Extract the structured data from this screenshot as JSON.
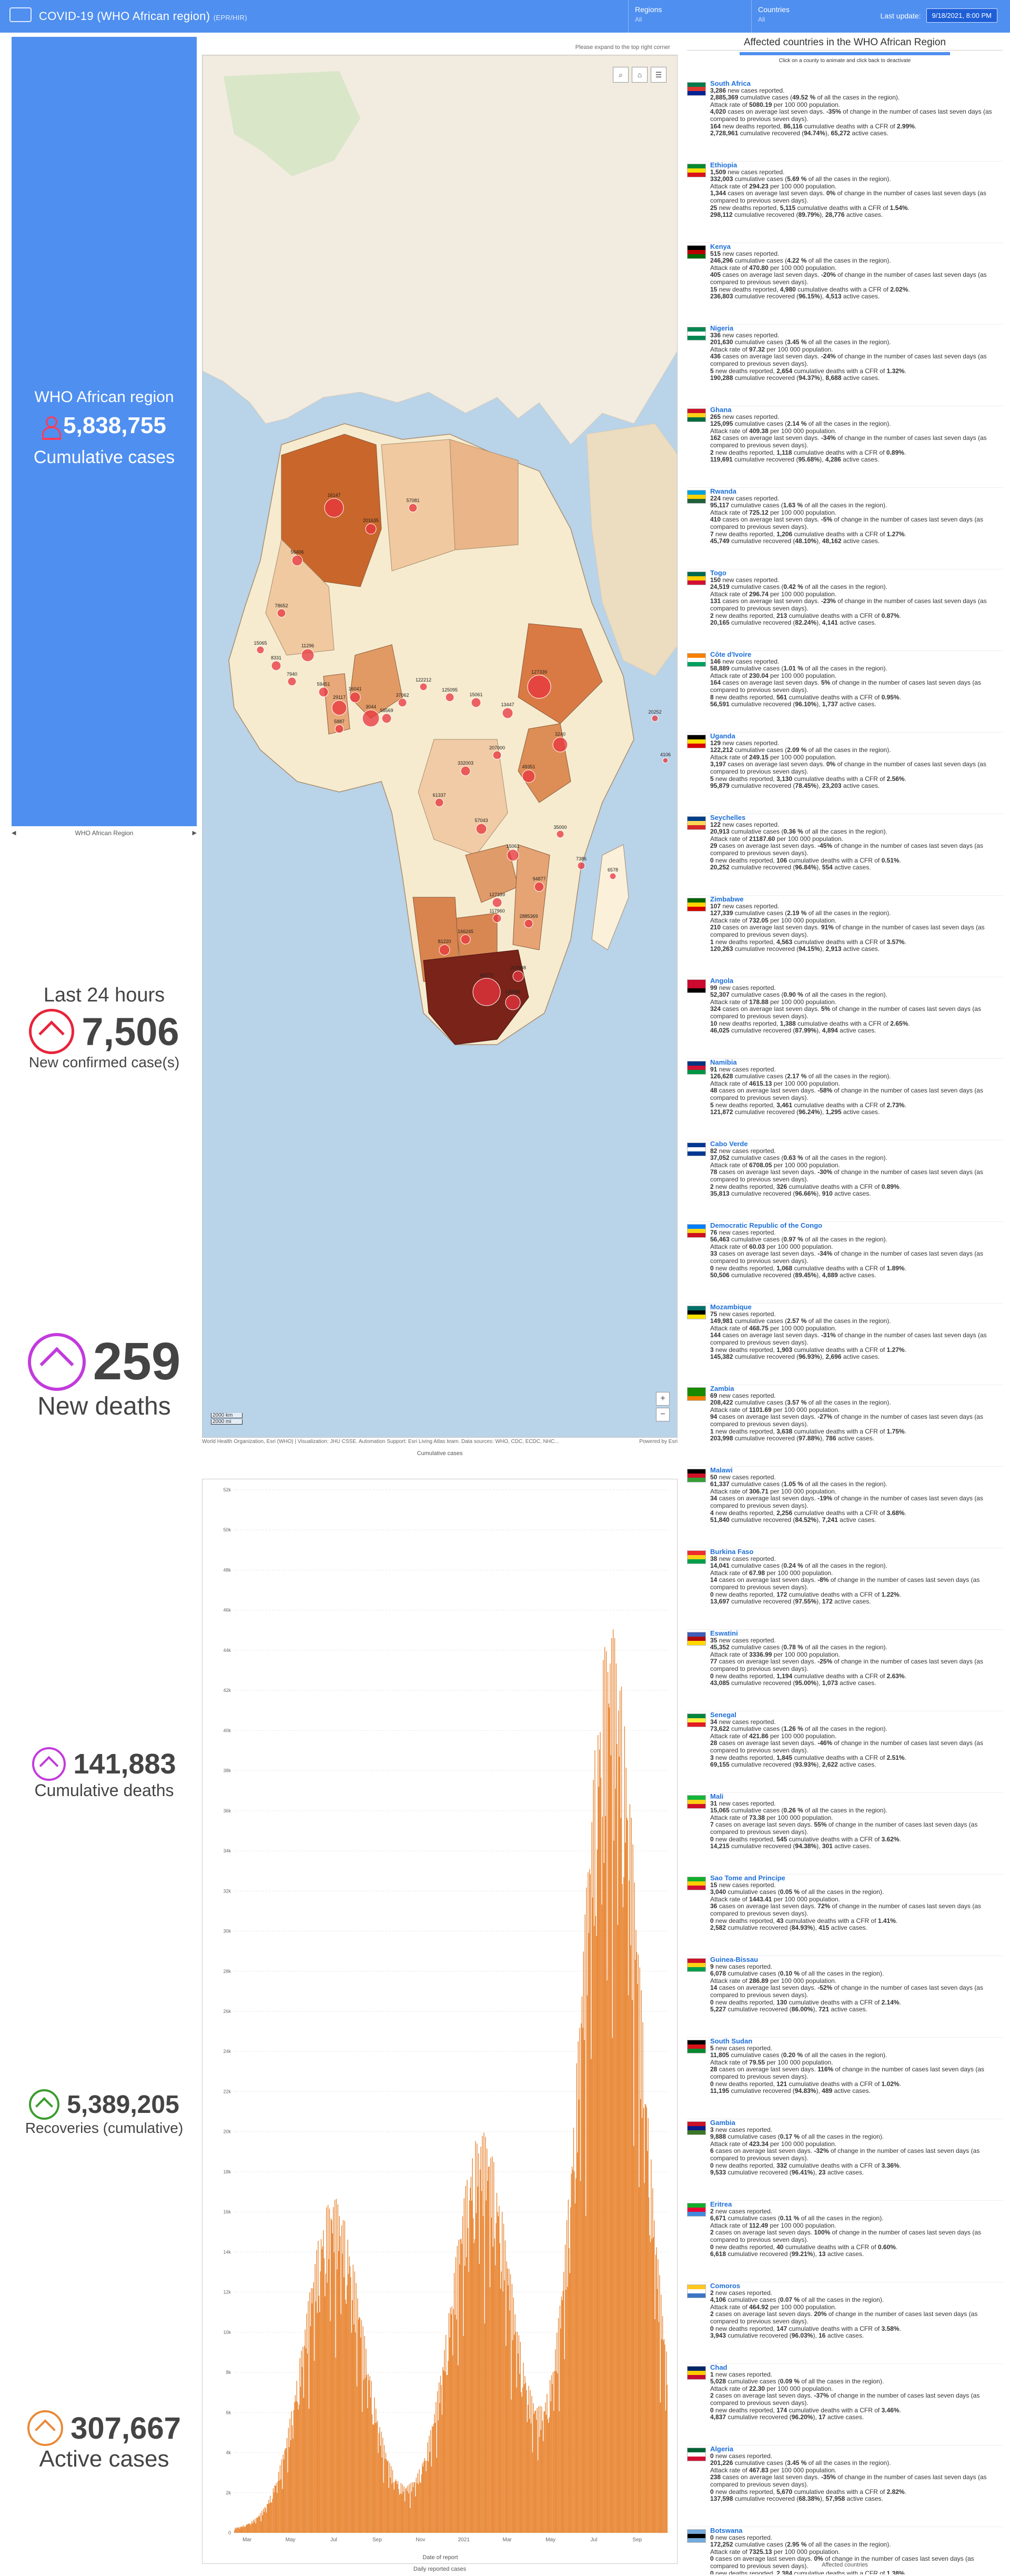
{
  "header": {
    "title": "COVID-19 (WHO African region)",
    "subtitle": "(EPR/HIR)",
    "regions_label": "Regions",
    "regions_value": "All",
    "countries_label": "Countries",
    "countries_value": "All",
    "last_update_label": "Last update:",
    "last_update_value": "9/18/2021, 8:00 PM",
    "colors": {
      "bar": "#4f8ff0",
      "badge": "#1f5fd6"
    }
  },
  "left": {
    "region_name": "WHO African region",
    "cumulative_cases": "5,838,755",
    "cumulative_cases_label": "Cumulative cases",
    "region_nav": "WHO African Region",
    "last24_title": "Last 24 hours",
    "new_cases": "7,506",
    "new_cases_label": "New confirmed case(s)",
    "new_deaths": "259",
    "new_deaths_label": "New deaths",
    "cum_deaths": "141,883",
    "cum_deaths_label": "Cumulative deaths",
    "recoveries": "5,389,205",
    "recoveries_label": "Recoveries (cumulative)",
    "active": "307,667",
    "active_label": "Active cases",
    "colors": {
      "cases": "#e8233a",
      "deaths": "#c23bdc",
      "recoveries": "#3a9c2e",
      "active": "#e98a3a"
    }
  },
  "map": {
    "hint": "Please expand to the top right corner",
    "scale_1": "2000 km",
    "scale_2": "2000 mi",
    "attribution": "World Health Organization, Esri (WHO) | Visualization: JHU CSSE. Automation Support: Esri Living Atlas team. Data sources: WHO, CDC, ECDC, NHC...",
    "powered": "Powered by Esri",
    "caption": "Cumulative cases",
    "labels": [
      "16147",
      "201635",
      "57081",
      "56406",
      "78652",
      "15065",
      "8331",
      "7940",
      "11296",
      "59451",
      "29117",
      "16041",
      "3044",
      "58569",
      "37062",
      "122212",
      "125095",
      "15061",
      "13447",
      "127339",
      "3240",
      "49351",
      "207000",
      "332003",
      "61337",
      "57043",
      "15061",
      "94877",
      "117960",
      "166245",
      "81220",
      "46270",
      "149981",
      "203998",
      "127339",
      "2885369",
      "35000",
      "7386",
      "6578",
      "20252",
      "4106",
      "5887"
    ]
  },
  "chart": {
    "caption": "Daily reported cases",
    "xlabel": "Date of report"
  },
  "chart_data": {
    "type": "bar",
    "title": "",
    "xlabel": "Date of report",
    "ylabel": "",
    "ylim": [
      0,
      52000
    ],
    "yticks": [
      "0",
      "2k",
      "4k",
      "6k",
      "8k",
      "10k",
      "12k",
      "14k",
      "16k",
      "18k",
      "20k",
      "22k",
      "24k",
      "26k",
      "28k",
      "30k",
      "32k",
      "34k",
      "36k",
      "38k",
      "40k",
      "42k",
      "44k",
      "46k",
      "48k",
      "50k",
      "52k"
    ],
    "xticks": [
      "Mar",
      "May",
      "Jul",
      "Sep",
      "Nov",
      "2021",
      "Mar",
      "May",
      "Jul",
      "Sep"
    ],
    "color": "#e98a3a",
    "waves": [
      {
        "peak_index": 130,
        "peak_value": 16000
      },
      {
        "peak_index": 325,
        "peak_value": 18500
      },
      {
        "peak_index": 495,
        "peak_value": 43000
      }
    ],
    "days": 570
  },
  "right": {
    "title": "Affected countries in the WHO African Region",
    "subtitle": "Click on a county to animate and click back to deactivate",
    "footer": "Affected countries",
    "countries": [
      {
        "name": "South Africa",
        "new": "3,286",
        "cum": "2,885,369",
        "pct": "49.52 %",
        "rate": "5080.19",
        "avg": "4,020",
        "chg": "-35%",
        "dnew": "164",
        "dcum": "86,116",
        "cfr": "2.99%",
        "rec": "2,728,961",
        "rpct": "94.74%",
        "act": "65,272",
        "flag": [
          "#007a4d",
          "#de3831",
          "#002395"
        ]
      },
      {
        "name": "Ethiopia",
        "new": "1,509",
        "cum": "332,003",
        "pct": "5.69 %",
        "rate": "294.23",
        "avg": "1,344",
        "chg": "0%",
        "dnew": "25",
        "dcum": "5,115",
        "cfr": "1.54%",
        "rec": "298,112",
        "rpct": "89.79%",
        "act": "28,776",
        "flag": [
          "#078930",
          "#fcdd09",
          "#da121a"
        ]
      },
      {
        "name": "Kenya",
        "new": "515",
        "cum": "246,296",
        "pct": "4.22 %",
        "rate": "470.80",
        "avg": "405",
        "chg": "-20%",
        "dnew": "15",
        "dcum": "4,980",
        "cfr": "2.02%",
        "rec": "236,803",
        "rpct": "96.15%",
        "act": "4,513",
        "flag": [
          "#000000",
          "#bb0000",
          "#006600"
        ]
      },
      {
        "name": "Nigeria",
        "new": "336",
        "cum": "201,630",
        "pct": "3.45 %",
        "rate": "97.32",
        "avg": "436",
        "chg": "-24%",
        "dnew": "5",
        "dcum": "2,654",
        "cfr": "1.32%",
        "rec": "190,288",
        "rpct": "94.37%",
        "act": "8,688",
        "flag": [
          "#008751",
          "#ffffff",
          "#008751"
        ]
      },
      {
        "name": "Ghana",
        "new": "265",
        "cum": "125,095",
        "pct": "2.14 %",
        "rate": "409.38",
        "avg": "162",
        "chg": "-34%",
        "dnew": "2",
        "dcum": "1,118",
        "cfr": "0.89%",
        "rec": "119,691",
        "rpct": "95.68%",
        "act": "4,286",
        "flag": [
          "#ce1126",
          "#fcd116",
          "#006b3f"
        ]
      },
      {
        "name": "Rwanda",
        "new": "224",
        "cum": "95,117",
        "pct": "1.63 %",
        "rate": "725.12",
        "avg": "410",
        "chg": "-5%",
        "dnew": "7",
        "dcum": "1,206",
        "cfr": "1.27%",
        "rec": "45,749",
        "rpct": "48.10%",
        "act": "48,162",
        "flag": [
          "#00a1de",
          "#fad201",
          "#20603d"
        ]
      },
      {
        "name": "Togo",
        "new": "150",
        "cum": "24,519",
        "pct": "0.42 %",
        "rate": "296.74",
        "avg": "131",
        "chg": "-23%",
        "dnew": "2",
        "dcum": "213",
        "cfr": "0.87%",
        "rec": "20,165",
        "rpct": "82.24%",
        "act": "4,141",
        "flag": [
          "#006a4e",
          "#ffce00",
          "#d21034"
        ]
      },
      {
        "name": "Côte d'Ivoire",
        "new": "146",
        "cum": "58,889",
        "pct": "1.01 %",
        "rate": "230.04",
        "avg": "164",
        "chg": "5%",
        "dnew": "8",
        "dcum": "561",
        "cfr": "0.95%",
        "rec": "56,591",
        "rpct": "96.10%",
        "act": "1,737",
        "flag": [
          "#f77f00",
          "#ffffff",
          "#009e60"
        ]
      },
      {
        "name": "Uganda",
        "new": "129",
        "cum": "122,212",
        "pct": "2.09 %",
        "rate": "249.15",
        "avg": "3,197",
        "chg": "0%",
        "dnew": "5",
        "dcum": "3,130",
        "cfr": "2.56%",
        "rec": "95,879",
        "rpct": "78.45%",
        "act": "23,203",
        "flag": [
          "#000000",
          "#fcdc04",
          "#d90000"
        ]
      },
      {
        "name": "Seychelles",
        "new": "122",
        "cum": "20,913",
        "pct": "0.36 %",
        "rate": "21187.60",
        "avg": "29",
        "chg": "-45%",
        "dnew": "0",
        "dcum": "106",
        "cfr": "0.51%",
        "rec": "20,252",
        "rpct": "96.84%",
        "act": "554",
        "flag": [
          "#003f87",
          "#fcd856",
          "#d62828"
        ]
      },
      {
        "name": "Zimbabwe",
        "new": "107",
        "cum": "127,339",
        "pct": "2.19 %",
        "rate": "732.05",
        "avg": "210",
        "chg": "91%",
        "dnew": "1",
        "dcum": "4,563",
        "cfr": "3.57%",
        "rec": "120,263",
        "rpct": "94.15%",
        "act": "2,913",
        "flag": [
          "#006400",
          "#ffd200",
          "#d40000"
        ]
      },
      {
        "name": "Angola",
        "new": "99",
        "cum": "52,307",
        "pct": "0.90 %",
        "rate": "178.88",
        "avg": "324",
        "chg": "5%",
        "dnew": "10",
        "dcum": "1,388",
        "cfr": "2.65%",
        "rec": "46,025",
        "rpct": "87.99%",
        "act": "4,894",
        "flag": [
          "#cc092f",
          "#cc092f",
          "#000000"
        ]
      },
      {
        "name": "Namibia",
        "new": "91",
        "cum": "126,628",
        "pct": "2.17 %",
        "rate": "4615.13",
        "avg": "48",
        "chg": "-58%",
        "dnew": "5",
        "dcum": "3,461",
        "cfr": "2.73%",
        "rec": "121,872",
        "rpct": "96.24%",
        "act": "1,295",
        "flag": [
          "#003580",
          "#d21034",
          "#009543"
        ]
      },
      {
        "name": "Cabo Verde",
        "new": "82",
        "cum": "37,052",
        "pct": "0.63 %",
        "rate": "6708.05",
        "avg": "78",
        "chg": "-30%",
        "dnew": "2",
        "dcum": "326",
        "cfr": "0.89%",
        "rec": "35,813",
        "rpct": "96.66%",
        "act": "910",
        "flag": [
          "#003893",
          "#ffffff",
          "#003893"
        ]
      },
      {
        "name": "Democratic Republic of the Congo",
        "new": "76",
        "cum": "56,463",
        "pct": "0.97 %",
        "rate": "60.03",
        "avg": "33",
        "chg": "-34%",
        "dnew": "0",
        "dcum": "1,068",
        "cfr": "1.89%",
        "rec": "50,506",
        "rpct": "89.45%",
        "act": "4,889",
        "flag": [
          "#007fff",
          "#f7d618",
          "#ce1021"
        ]
      },
      {
        "name": "Mozambique",
        "new": "75",
        "cum": "149,981",
        "pct": "2.57 %",
        "rate": "468.75",
        "avg": "144",
        "chg": "-31%",
        "dnew": "3",
        "dcum": "1,903",
        "cfr": "1.27%",
        "rec": "145,382",
        "rpct": "96.93%",
        "act": "2,696",
        "flag": [
          "#007168",
          "#000000",
          "#fce100"
        ]
      },
      {
        "name": "Zambia",
        "new": "69",
        "cum": "208,422",
        "pct": "3.57 %",
        "rate": "1101.69",
        "avg": "94",
        "chg": "-27%",
        "dnew": "1",
        "dcum": "3,638",
        "cfr": "1.75%",
        "rec": "203,998",
        "rpct": "97.88%",
        "act": "786",
        "flag": [
          "#198a00",
          "#198a00",
          "#ef7d00"
        ]
      },
      {
        "name": "Malawi",
        "new": "50",
        "cum": "61,337",
        "pct": "1.05 %",
        "rate": "306.71",
        "avg": "34",
        "chg": "-19%",
        "dnew": "4",
        "dcum": "2,256",
        "cfr": "3.68%",
        "rec": "51,840",
        "rpct": "84.52%",
        "act": "7,241",
        "flag": [
          "#000000",
          "#ce1126",
          "#339e35"
        ]
      },
      {
        "name": "Burkina Faso",
        "new": "38",
        "cum": "14,041",
        "pct": "0.24 %",
        "rate": "67.98",
        "avg": "14",
        "chg": "-8%",
        "dnew": "0",
        "dcum": "172",
        "cfr": "1.22%",
        "rec": "13,697",
        "rpct": "97.55%",
        "act": "172",
        "flag": [
          "#ef2b2d",
          "#fcd116",
          "#009e49"
        ]
      },
      {
        "name": "Eswatini",
        "new": "35",
        "cum": "45,352",
        "pct": "0.78 %",
        "rate": "3336.99",
        "avg": "77",
        "chg": "-25%",
        "dnew": "0",
        "dcum": "1,194",
        "cfr": "2.63%",
        "rec": "43,085",
        "rpct": "95.00%",
        "act": "1,073",
        "flag": [
          "#3e5eb9",
          "#b10c0c",
          "#ffd900"
        ]
      },
      {
        "name": "Senegal",
        "new": "34",
        "cum": "73,622",
        "pct": "1.26 %",
        "rate": "421.86",
        "avg": "28",
        "chg": "-46%",
        "dnew": "3",
        "dcum": "1,845",
        "cfr": "2.51%",
        "rec": "69,155",
        "rpct": "93.93%",
        "act": "2,622",
        "flag": [
          "#00853f",
          "#fdef42",
          "#e31b23"
        ]
      },
      {
        "name": "Mali",
        "new": "31",
        "cum": "15,065",
        "pct": "0.26 %",
        "rate": "73.38",
        "avg": "7",
        "chg": "55%",
        "dnew": "0",
        "dcum": "545",
        "cfr": "3.62%",
        "rec": "14,215",
        "rpct": "94.38%",
        "act": "301",
        "flag": [
          "#14b53a",
          "#fcd116",
          "#ce1126"
        ]
      },
      {
        "name": "Sao Tome and Principe",
        "new": "15",
        "cum": "3,040",
        "pct": "0.05 %",
        "rate": "1443.41",
        "avg": "36",
        "chg": "72%",
        "dnew": "0",
        "dcum": "43",
        "cfr": "1.41%",
        "rec": "2,582",
        "rpct": "84.93%",
        "act": "415",
        "flag": [
          "#12ad2b",
          "#ffce00",
          "#d21034"
        ]
      },
      {
        "name": "Guinea-Bissau",
        "new": "9",
        "cum": "6,078",
        "pct": "0.10 %",
        "rate": "286.89",
        "avg": "14",
        "chg": "-52%",
        "dnew": "0",
        "dcum": "130",
        "cfr": "2.14%",
        "rec": "5,227",
        "rpct": "86.00%",
        "act": "721",
        "flag": [
          "#ce1126",
          "#fcd116",
          "#009e49"
        ]
      },
      {
        "name": "South Sudan",
        "new": "5",
        "cum": "11,805",
        "pct": "0.20 %",
        "rate": "79.55",
        "avg": "28",
        "chg": "116%",
        "dnew": "0",
        "dcum": "121",
        "cfr": "1.02%",
        "rec": "11,195",
        "rpct": "94.83%",
        "act": "489",
        "flag": [
          "#000000",
          "#da121a",
          "#078930"
        ]
      },
      {
        "name": "Gambia",
        "new": "3",
        "cum": "9,888",
        "pct": "0.17 %",
        "rate": "423.34",
        "avg": "6",
        "chg": "-32%",
        "dnew": "0",
        "dcum": "332",
        "cfr": "3.36%",
        "rec": "9,533",
        "rpct": "96.41%",
        "act": "23",
        "flag": [
          "#ce1126",
          "#0c1c8c",
          "#3a7728"
        ]
      },
      {
        "name": "Eritrea",
        "new": "2",
        "cum": "6,671",
        "pct": "0.11 %",
        "rate": "112.49",
        "avg": "2",
        "chg": "100%",
        "dnew": "0",
        "dcum": "40",
        "cfr": "0.60%",
        "rec": "6,618",
        "rpct": "99.21%",
        "act": "13",
        "flag": [
          "#12ad2b",
          "#ea0437",
          "#4189dd"
        ]
      },
      {
        "name": "Comoros",
        "new": "2",
        "cum": "4,106",
        "pct": "0.07 %",
        "rate": "464.92",
        "avg": "2",
        "chg": "20%",
        "dnew": "0",
        "dcum": "147",
        "cfr": "3.58%",
        "rec": "3,943",
        "rpct": "96.03%",
        "act": "16",
        "flag": [
          "#ffc61e",
          "#ffffff",
          "#3a75c4"
        ]
      },
      {
        "name": "Chad",
        "new": "1",
        "cum": "5,028",
        "pct": "0.09 %",
        "rate": "22.30",
        "avg": "2",
        "chg": "-37%",
        "dnew": "0",
        "dcum": "174",
        "cfr": "3.46%",
        "rec": "4,837",
        "rpct": "96.20%",
        "act": "17",
        "flag": [
          "#002664",
          "#fecb00",
          "#c60c30"
        ]
      },
      {
        "name": "Algeria",
        "new": "0",
        "cum": "201,226",
        "pct": "3.45 %",
        "rate": "467.83",
        "avg": "238",
        "chg": "-35%",
        "dnew": "0",
        "dcum": "5,670",
        "cfr": "2.82%",
        "rec": "137,598",
        "rpct": "68.38%",
        "act": "57,958",
        "flag": [
          "#006233",
          "#ffffff",
          "#d21034"
        ]
      },
      {
        "name": "Botswana",
        "new": "0",
        "cum": "172,252",
        "pct": "2.95 %",
        "rate": "7325.13",
        "avg": "0",
        "chg": "0%",
        "dnew": "0",
        "dcum": "2,384",
        "cfr": "1.38%",
        "rec": "166,245",
        "rpct": "96.51%",
        "act": "3,623",
        "flag": [
          "#75aadb",
          "#000000",
          "#75aadb"
        ]
      }
    ]
  }
}
